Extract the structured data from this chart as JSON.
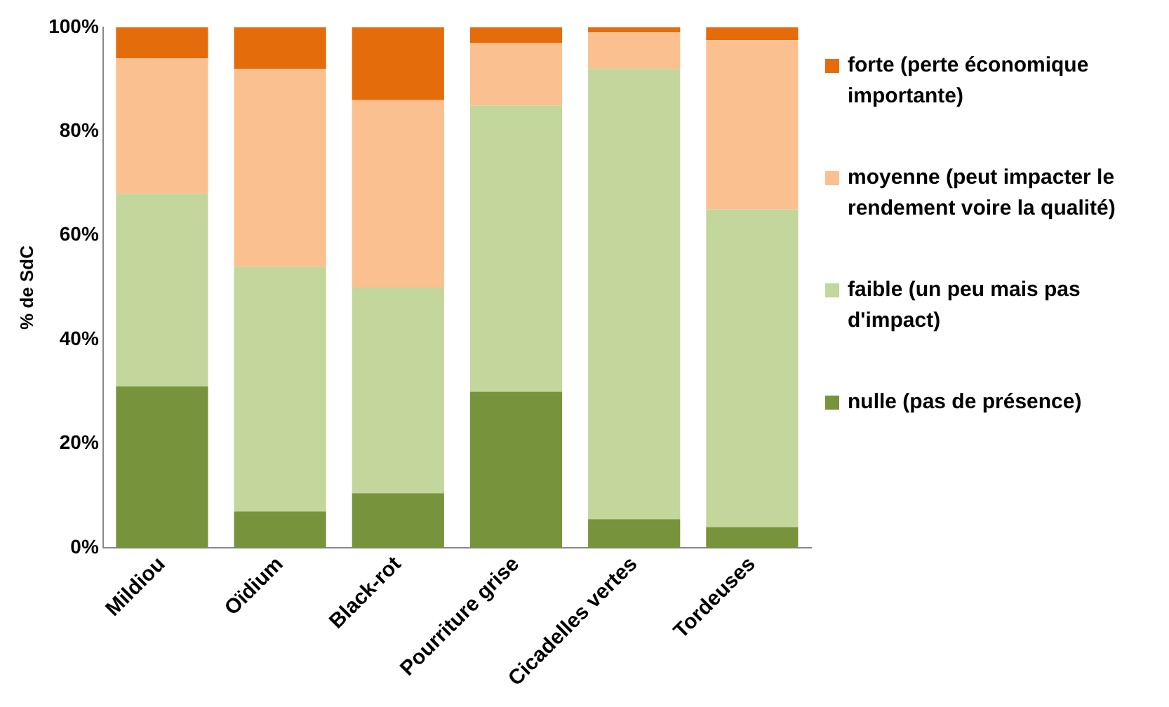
{
  "chart_data": {
    "type": "bar",
    "stacked": true,
    "ylabel": "% de SdC",
    "categories": [
      "Mildiou",
      "Oïdium",
      "Black-rot",
      "Pourriture grise",
      "Cicadelles vertes",
      "Tordeuses"
    ],
    "series": [
      {
        "name": "nulle (pas de présence)",
        "color": "#77933c",
        "values": [
          31,
          7,
          10.5,
          30,
          5.5,
          4
        ]
      },
      {
        "name": "faible (un peu mais pas d'impact)",
        "color": "#c3d69b",
        "values": [
          37,
          47,
          39.5,
          55,
          86.5,
          61
        ]
      },
      {
        "name": "moyenne (peut impacter le rendement voire la qualité)",
        "color": "#fac090",
        "values": [
          26,
          38,
          36,
          12,
          7,
          32.5
        ]
      },
      {
        "name": "forte (perte économique importante)",
        "color": "#e46c0a",
        "values": [
          6,
          8,
          14,
          3,
          1,
          2.5
        ]
      }
    ],
    "ylim": [
      0,
      100
    ],
    "yticks": [
      {
        "value": 0,
        "label": "0%"
      },
      {
        "value": 20,
        "label": "20%"
      },
      {
        "value": 40,
        "label": "40%"
      },
      {
        "value": 60,
        "label": "60%"
      },
      {
        "value": 80,
        "label": "80%"
      },
      {
        "value": 100,
        "label": "100%"
      }
    ],
    "grid": false,
    "legend": "right"
  }
}
